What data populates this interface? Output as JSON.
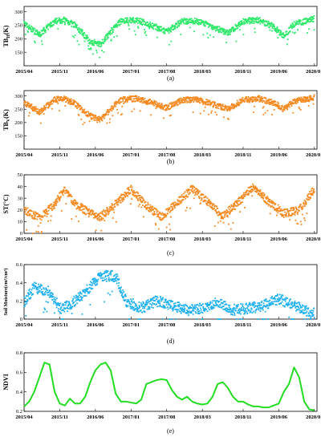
{
  "chart_data": [
    {
      "type": "scatter",
      "panel": "(a)",
      "ylabel": "TB_H(K)",
      "ylim": [
        100,
        320
      ],
      "yticks": [
        150,
        200,
        250,
        300
      ],
      "xticks": [
        "2015/04",
        "2015/11",
        "2016/06",
        "2017/01",
        "2017/08",
        "2018/03",
        "2018/11",
        "2019/06",
        "2020/01"
      ],
      "color": "#2ee86a",
      "grid": false,
      "series": [
        {
          "x": [
            "2015/04",
            "2015/07",
            "2015/10",
            "2015/12",
            "2016/02",
            "2016/05",
            "2016/07",
            "2016/09",
            "2016/11",
            "2017/02",
            "2017/05",
            "2017/08",
            "2017/11",
            "2018/02",
            "2018/05",
            "2018/08",
            "2018/11",
            "2019/02",
            "2019/05",
            "2019/07",
            "2019/09",
            "2019/12",
            "2020/01"
          ],
          "values": [
            255,
            215,
            265,
            270,
            250,
            190,
            180,
            225,
            265,
            270,
            250,
            225,
            265,
            265,
            245,
            220,
            265,
            270,
            245,
            210,
            255,
            270,
            275
          ]
        }
      ]
    },
    {
      "type": "scatter",
      "panel": "(b)",
      "ylabel": "TB_V(K)",
      "ylim": [
        100,
        320
      ],
      "yticks": [
        150,
        200,
        250,
        300
      ],
      "xticks": [
        "2015/04",
        "2015/11",
        "2016/06",
        "2017/01",
        "2017/08",
        "2018/03",
        "2018/11",
        "2019/06",
        "2020/01"
      ],
      "color": "#f5891f",
      "grid": false,
      "series": [
        {
          "x": [
            "2015/04",
            "2015/07",
            "2015/10",
            "2015/12",
            "2016/02",
            "2016/05",
            "2016/07",
            "2016/09",
            "2016/11",
            "2017/02",
            "2017/05",
            "2017/08",
            "2017/11",
            "2018/02",
            "2018/05",
            "2018/08",
            "2018/11",
            "2019/02",
            "2019/05",
            "2019/07",
            "2019/09",
            "2019/12",
            "2020/01"
          ],
          "values": [
            275,
            240,
            285,
            290,
            270,
            225,
            210,
            250,
            285,
            290,
            275,
            255,
            285,
            285,
            270,
            250,
            285,
            290,
            275,
            250,
            280,
            290,
            295
          ]
        }
      ]
    },
    {
      "type": "scatter",
      "panel": "(c)",
      "ylabel": "ST(°C)",
      "ylim": [
        0,
        50
      ],
      "yticks": [
        0,
        10,
        20,
        30,
        40,
        50
      ],
      "xticks": [
        "2015/04",
        "2015/11",
        "2016/06",
        "2017/01",
        "2017/08",
        "2018/03",
        "2018/11",
        "2019/06",
        "2020/01"
      ],
      "color": "#f5891f",
      "grid": false,
      "series": [
        {
          "x": [
            "2015/04",
            "2015/07",
            "2015/10",
            "2015/12",
            "2016/02",
            "2016/05",
            "2016/07",
            "2016/10",
            "2017/01",
            "2017/04",
            "2017/07",
            "2017/10",
            "2018/01",
            "2018/04",
            "2018/07",
            "2018/10",
            "2019/01",
            "2019/04",
            "2019/07",
            "2019/10",
            "2020/01"
          ],
          "values": [
            20,
            13,
            25,
            38,
            25,
            17,
            14,
            25,
            38,
            24,
            14,
            26,
            38,
            27,
            15,
            26,
            40,
            27,
            17,
            20,
            38
          ]
        }
      ]
    },
    {
      "type": "scatter",
      "panel": "(d)",
      "ylabel": "Soil Moisture(cm³/cm³)",
      "ylim": [
        0,
        0.6
      ],
      "yticks": [
        0,
        0.2,
        0.4,
        0.6
      ],
      "xticks": [
        "2015/04",
        "2015/11",
        "2016/06",
        "2017/01",
        "2017/08",
        "2018/03",
        "2018/11",
        "2019/06",
        "2020/01"
      ],
      "color": "#1fb0f0",
      "grid": false,
      "series": [
        {
          "x": [
            "2015/04",
            "2015/06",
            "2015/09",
            "2015/11",
            "2016/01",
            "2016/04",
            "2016/07",
            "2016/10",
            "2016/12",
            "2017/03",
            "2017/06",
            "2017/09",
            "2017/12",
            "2018/03",
            "2018/06",
            "2018/09",
            "2018/12",
            "2019/03",
            "2019/06",
            "2019/09",
            "2019/12",
            "2020/01"
          ],
          "values": [
            0.18,
            0.35,
            0.3,
            0.12,
            0.15,
            0.3,
            0.48,
            0.47,
            0.2,
            0.12,
            0.2,
            0.15,
            0.1,
            0.12,
            0.2,
            0.1,
            0.12,
            0.15,
            0.22,
            0.15,
            0.08,
            0.06
          ]
        }
      ]
    },
    {
      "type": "line",
      "panel": "(e)",
      "ylabel": "NDVI",
      "ylim": [
        0.2,
        0.8
      ],
      "yticks": [
        0.2,
        0.4,
        0.6,
        0.8
      ],
      "xticks": [
        "2015/04",
        "2015/11",
        "2016/06",
        "2017/01",
        "2017/08",
        "2018/03",
        "2018/11",
        "2019/06",
        "2020/01"
      ],
      "color": "#22dd22",
      "grid": false,
      "series": [
        {
          "x": [
            "2015/04",
            "2015/05",
            "2015/06",
            "2015/07",
            "2015/08",
            "2015/09",
            "2015/10",
            "2015/11",
            "2015/12",
            "2016/01",
            "2016/02",
            "2016/03",
            "2016/04",
            "2016/05",
            "2016/06",
            "2016/07",
            "2016/08",
            "2016/09",
            "2016/10",
            "2016/11",
            "2016/12",
            "2017/01",
            "2017/02",
            "2017/03",
            "2017/04",
            "2017/05",
            "2017/06",
            "2017/07",
            "2017/08",
            "2017/09",
            "2017/10",
            "2017/11",
            "2017/12",
            "2018/01",
            "2018/02",
            "2018/03",
            "2018/04",
            "2018/05",
            "2018/06",
            "2018/07",
            "2018/08",
            "2018/09",
            "2018/10",
            "2018/11",
            "2018/12",
            "2019/01",
            "2019/02",
            "2019/03",
            "2019/04",
            "2019/05",
            "2019/06",
            "2019/07",
            "2019/08",
            "2019/09",
            "2019/10",
            "2019/11",
            "2019/12",
            "2020/01"
          ],
          "values": [
            0.25,
            0.3,
            0.4,
            0.55,
            0.7,
            0.68,
            0.4,
            0.28,
            0.26,
            0.33,
            0.28,
            0.28,
            0.35,
            0.5,
            0.62,
            0.68,
            0.7,
            0.62,
            0.38,
            0.3,
            0.3,
            0.29,
            0.28,
            0.32,
            0.48,
            0.5,
            0.52,
            0.53,
            0.52,
            0.42,
            0.35,
            0.32,
            0.35,
            0.3,
            0.28,
            0.27,
            0.28,
            0.35,
            0.48,
            0.5,
            0.44,
            0.35,
            0.3,
            0.3,
            0.27,
            0.25,
            0.25,
            0.24,
            0.24,
            0.26,
            0.28,
            0.4,
            0.48,
            0.65,
            0.55,
            0.3,
            0.22,
            0.21
          ]
        }
      ]
    }
  ]
}
